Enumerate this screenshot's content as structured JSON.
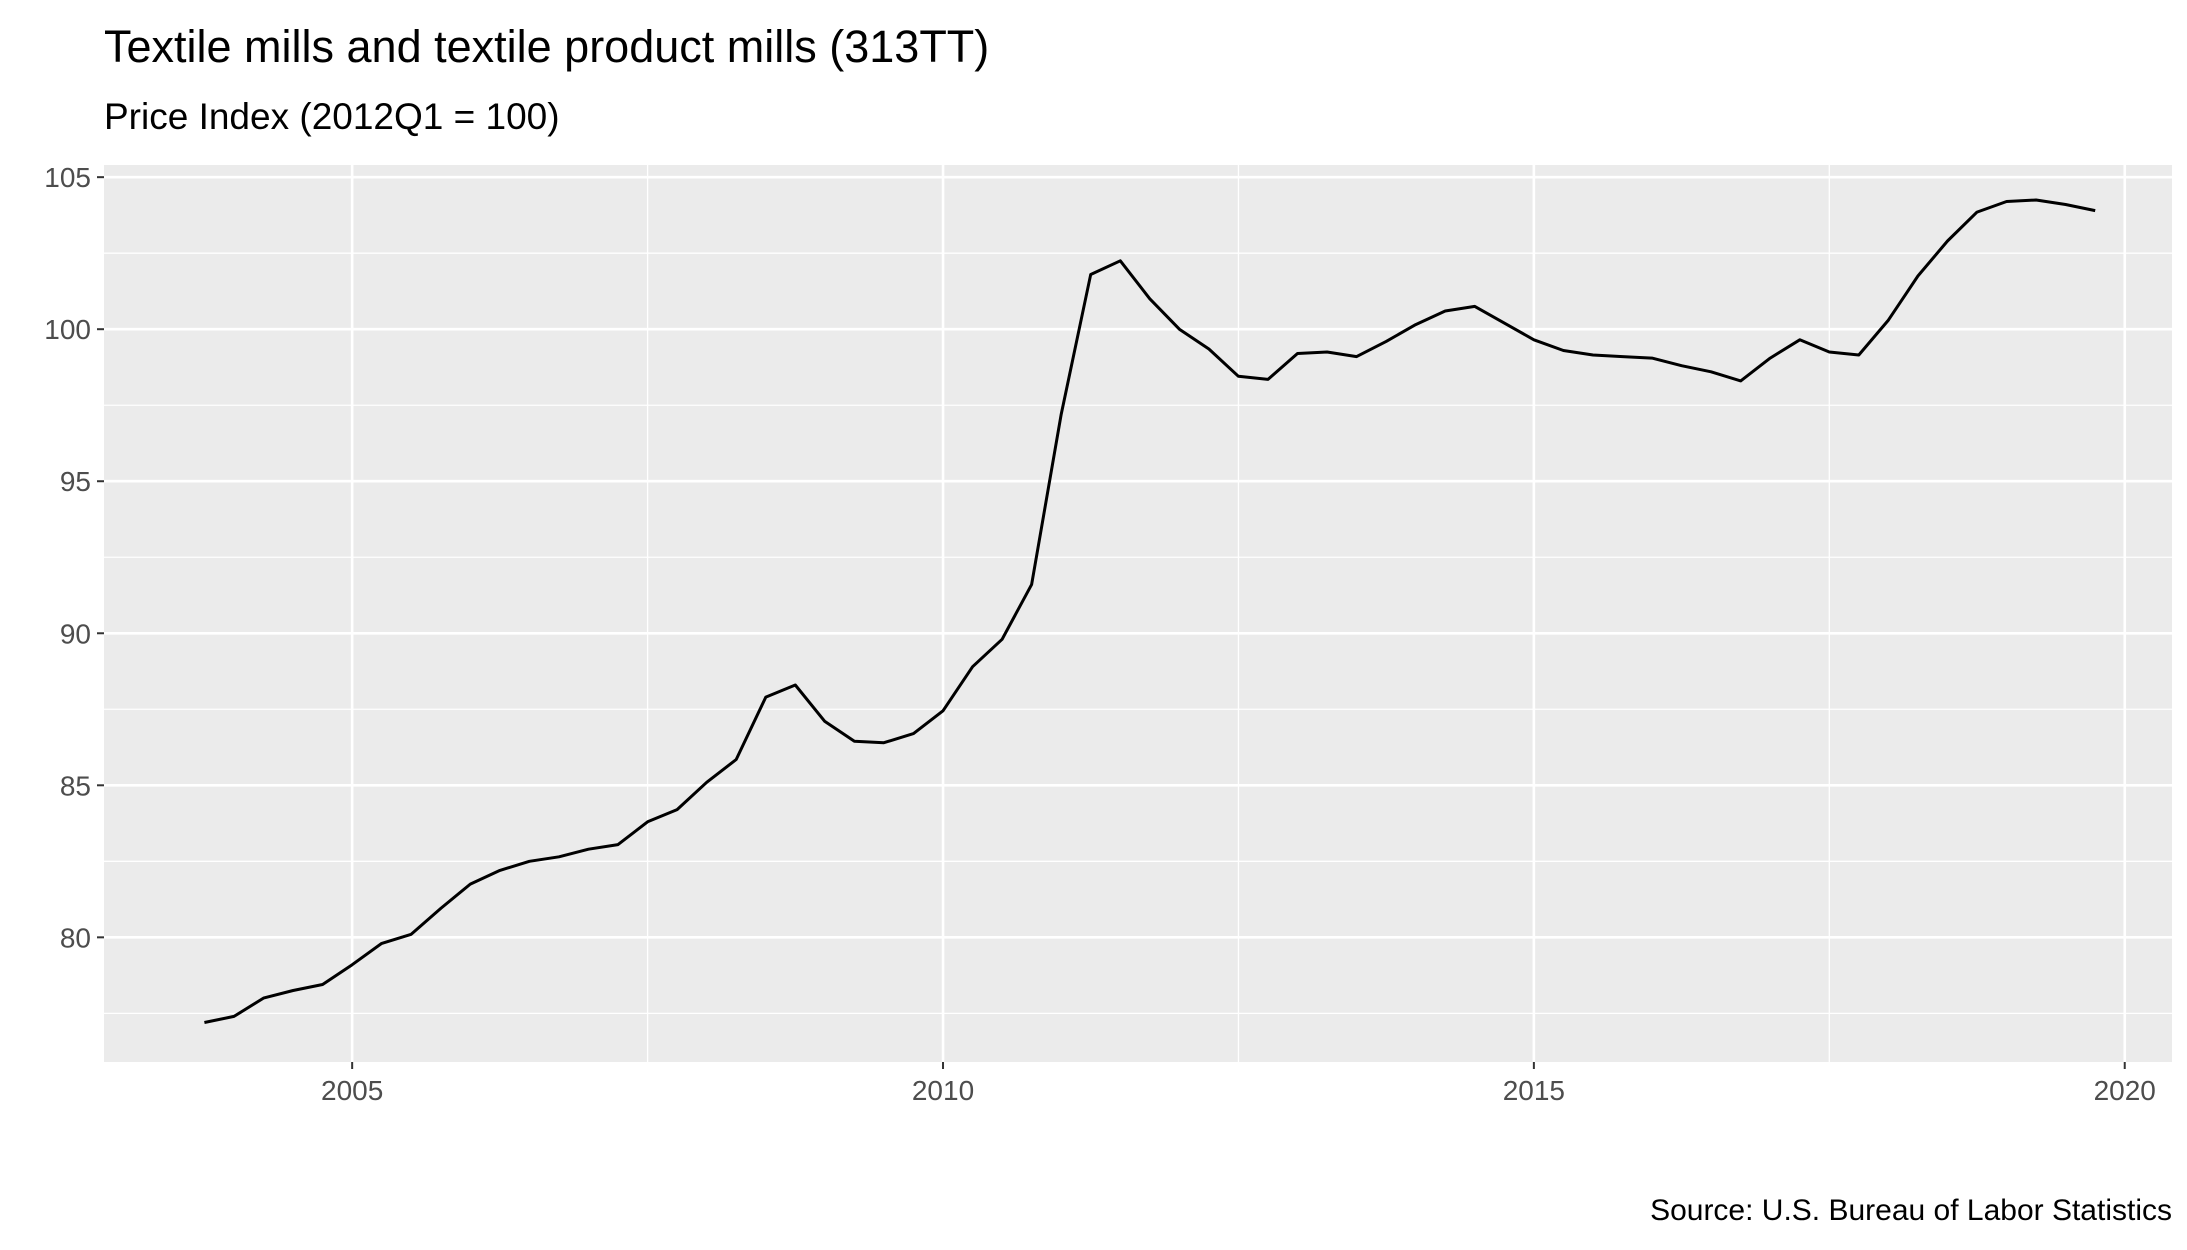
{
  "chart_data": {
    "type": "line",
    "title": "Textile mills and textile product mills (313TT)",
    "subtitle": "Price Index (2012Q1 = 100)",
    "caption": "Source: U.S. Bureau of Labor Statistics",
    "xlabel": "",
    "ylabel": "",
    "xlim": [
      2002.9,
      2020.4
    ],
    "ylim": [
      75.9,
      105.4
    ],
    "x_ticks": [
      2005,
      2010,
      2015,
      2020
    ],
    "y_ticks": [
      80,
      85,
      90,
      95,
      100,
      105
    ],
    "grid": true,
    "legend": "none",
    "colors": {
      "panel": "#ebebeb",
      "grid": "#ffffff",
      "line": "#000000",
      "tick_text": "#4d4d4d"
    },
    "series": [
      {
        "x": [
          2003.75,
          2004.0,
          2004.25,
          2004.5,
          2004.75,
          2005.0,
          2005.25,
          2005.5,
          2005.75,
          2006.0,
          2006.25,
          2006.5,
          2006.75,
          2007.0,
          2007.25,
          2007.5,
          2007.75,
          2008.0,
          2008.25,
          2008.5,
          2008.75,
          2009.0,
          2009.25,
          2009.5,
          2009.75,
          2010.0,
          2010.25,
          2010.5,
          2010.75,
          2011.0,
          2011.25,
          2011.5,
          2011.75,
          2012.0,
          2012.25,
          2012.5,
          2012.75,
          2013.0,
          2013.25,
          2013.5,
          2013.75,
          2014.0,
          2014.25,
          2014.5,
          2014.75,
          2015.0,
          2015.25,
          2015.5,
          2015.75,
          2016.0,
          2016.25,
          2016.5,
          2016.75,
          2017.0,
          2017.25,
          2017.5,
          2017.75,
          2018.0,
          2018.25,
          2018.5,
          2018.75,
          2019.0,
          2019.25,
          2019.5,
          2019.75
        ],
        "values": [
          77.2,
          77.4,
          78.0,
          78.25,
          78.45,
          79.1,
          79.8,
          80.1,
          80.95,
          81.75,
          82.2,
          82.5,
          82.65,
          82.9,
          83.05,
          83.8,
          84.2,
          85.1,
          85.85,
          87.9,
          88.3,
          87.1,
          86.45,
          86.4,
          86.7,
          87.45,
          88.9,
          89.8,
          91.6,
          97.2,
          101.8,
          102.25,
          101.0,
          100.0,
          99.35,
          98.45,
          98.35,
          99.2,
          99.25,
          99.1,
          99.6,
          100.15,
          100.6,
          100.75,
          100.2,
          99.65,
          99.3,
          99.15,
          99.1,
          99.05,
          98.8,
          98.6,
          98.3,
          99.05,
          99.65,
          99.25,
          99.15,
          100.3,
          101.75,
          102.9,
          103.85,
          104.2,
          104.25,
          104.1,
          103.9
        ]
      }
    ]
  }
}
